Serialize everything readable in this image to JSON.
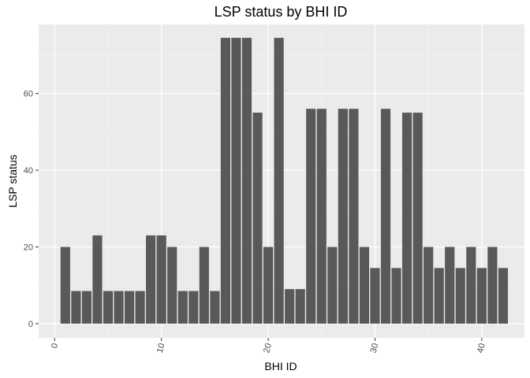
{
  "chart_data": {
    "type": "bar",
    "title": "LSP status by BHI ID",
    "xlabel": "BHI ID",
    "ylabel": "LSP status",
    "xlim": [
      -1.5,
      44
    ],
    "ylim": [
      -3.7,
      78
    ],
    "xticks": [
      0,
      10,
      20,
      30,
      40
    ],
    "yticks": [
      0,
      20,
      40,
      60
    ],
    "x": [
      1,
      2,
      3,
      4,
      5,
      6,
      7,
      8,
      9,
      10,
      11,
      12,
      13,
      14,
      15,
      16,
      17,
      18,
      19,
      20,
      21,
      22,
      23,
      24,
      25,
      26,
      27,
      28,
      29,
      30,
      31,
      32,
      33,
      34,
      35,
      36,
      37,
      38,
      39,
      40,
      41,
      42
    ],
    "values": [
      20,
      8.5,
      8.5,
      23,
      8.5,
      8.5,
      8.5,
      8.5,
      23,
      23,
      20,
      8.5,
      8.5,
      20,
      8.5,
      74.5,
      74.5,
      74.5,
      55,
      20,
      74.5,
      9,
      9,
      56,
      56,
      20,
      56,
      56,
      20,
      14.5,
      56,
      14.5,
      55,
      55,
      20,
      14.5,
      20,
      14.5,
      20,
      14.5,
      20,
      14.5
    ],
    "grid": true,
    "background": "#ebebeb",
    "bar_color": "#595959"
  }
}
